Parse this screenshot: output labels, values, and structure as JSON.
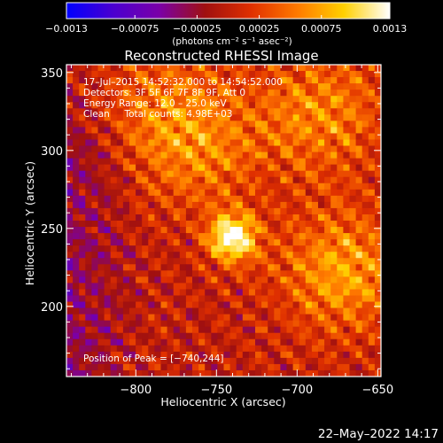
{
  "chart_data": {
    "type": "heatmap",
    "title": "Reconstructed RHESSI Image",
    "xlabel": "Heliocentric X (arcsec)",
    "ylabel": "Heliocentric Y (arcsec)",
    "xlim": [
      -843,
      -648
    ],
    "ylim": [
      155,
      355
    ],
    "x_ticks": [
      -800,
      -750,
      -700,
      -650
    ],
    "x_tick_labels": [
      "−800",
      "−750",
      "−700",
      "−650"
    ],
    "y_ticks": [
      200,
      250,
      300,
      350
    ],
    "y_tick_labels": [
      "200",
      "250",
      "300",
      "350"
    ],
    "annotations": [
      "17–Jul–2015 14:52:32.000 to 14:54:52.000",
      "Detectors: 3F 5F 6F 7F 8F 9F, Att 0",
      "Energy Range: 12.0 – 25.0 keV",
      "Clean     Total counts: 4.98E+03"
    ],
    "peak_label": "Position of Peak = [−740,244]",
    "peak": {
      "x": -740,
      "y": 244
    },
    "colorbar": {
      "range": [
        -0.0013,
        0.0013
      ],
      "ticks": [
        -0.0013,
        -0.00075,
        -0.00025,
        0.00025,
        0.00075,
        0.0013
      ],
      "tick_labels": [
        "−0.0013",
        "−0.00075",
        "−0.00025",
        "0.00025",
        "0.00075",
        "0.0013"
      ],
      "unit_label": "(photons cm⁻² s⁻¹ asec⁻²)",
      "colormap": [
        "#0000ff",
        "#4a00d0",
        "#7a00a8",
        "#a01010",
        "#e03000",
        "#ff7a00",
        "#ffd000",
        "#ffffff"
      ]
    },
    "sources": [
      {
        "x": -740,
        "y": 244,
        "amplitude": 0.00128
      },
      {
        "x": -672,
        "y": 222,
        "amplitude": 0.00072
      },
      {
        "x": -685,
        "y": 325,
        "amplitude": 0.0006
      },
      {
        "x": -760,
        "y": 300,
        "amplitude": 0.0005
      },
      {
        "x": -785,
        "y": 330,
        "amplitude": 0.0004
      }
    ]
  },
  "footer": {
    "timestamp": "22–May–2022 14:17"
  }
}
